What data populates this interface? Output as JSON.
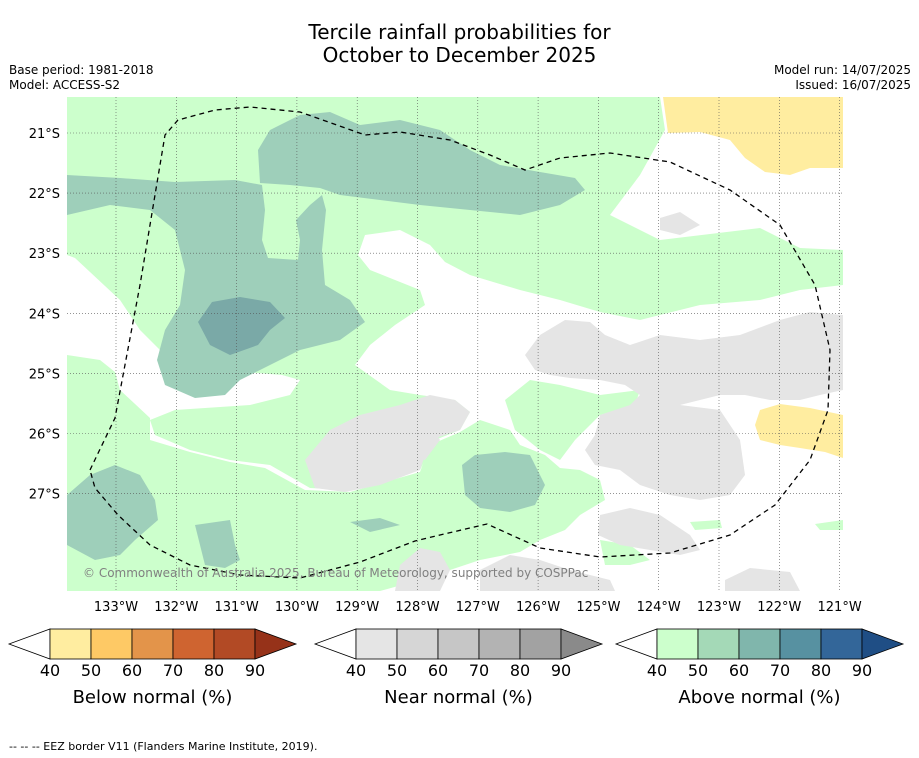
{
  "title": {
    "line1": "Tercile rainfall probabilities for",
    "line2": "October to December 2025"
  },
  "meta": {
    "base_period": "Base period: 1981-2018",
    "model": "Model: ACCESS-S2",
    "model_run": "Model run: 14/07/2025",
    "issued": "Issued: 16/07/2025"
  },
  "map": {
    "region_lon": [
      "133°W",
      "132°W",
      "131°W",
      "130°W",
      "129°W",
      "128°W",
      "127°W",
      "126°W",
      "125°W",
      "124°W",
      "123°W",
      "122°W",
      "121°W"
    ],
    "region_lat": [
      "21°S",
      "22°S",
      "23°S",
      "24°S",
      "25°S",
      "26°S",
      "27°S"
    ],
    "copyright": "© Commonwealth of Australia 2025, Bureau of Meteorology, supported by COSPPac",
    "colors": {
      "above_40": "#ccffcc",
      "above_50": "#9ecfba",
      "above_60": "#7aa9a7",
      "below_40": "#ffeda0",
      "near_40": "#e5e5e5",
      "eez_line": "#000000"
    }
  },
  "legends": [
    {
      "label": "Below normal (%)",
      "ticks": [
        "40",
        "50",
        "60",
        "70",
        "80",
        "90"
      ],
      "colors": [
        "#ffeda0",
        "#fec965",
        "#e3944a",
        "#cf6430",
        "#b24a25",
        "#963219"
      ]
    },
    {
      "label": "Near normal (%)",
      "ticks": [
        "40",
        "50",
        "60",
        "70",
        "80",
        "90"
      ],
      "colors": [
        "#e5e5e5",
        "#d6d6d6",
        "#c6c6c6",
        "#b3b3b3",
        "#a2a2a2",
        "#8a8a8a"
      ]
    },
    {
      "label": "Above normal (%)",
      "ticks": [
        "40",
        "50",
        "60",
        "70",
        "80",
        "90"
      ],
      "colors": [
        "#ccffcc",
        "#a4d9b7",
        "#80b6ac",
        "#5791a1",
        "#336699",
        "#1f4e85"
      ]
    }
  ],
  "footer": "--  --  -- EEZ border V11 (Flanders Marine Institute, 2019)."
}
